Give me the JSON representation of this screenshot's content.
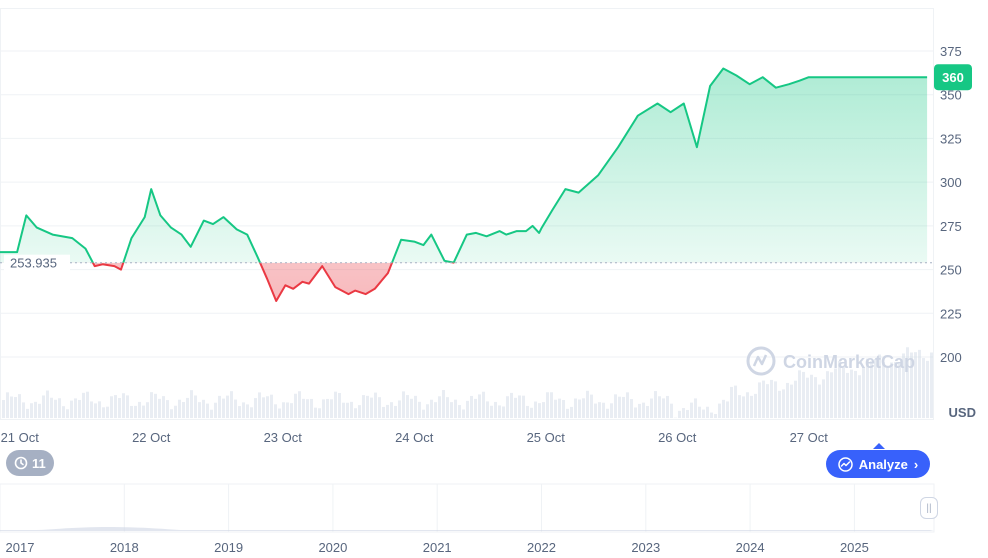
{
  "chart_data": {
    "type": "area",
    "currency_label": "USD",
    "current_price_label": "360",
    "baseline_label": "253.935",
    "baseline_value": 253.935,
    "ylim": [
      185,
      385
    ],
    "y_ticks": [
      "375",
      "350",
      "325",
      "300",
      "275",
      "250",
      "225",
      "200"
    ],
    "y_tick_values": [
      375,
      350,
      325,
      300,
      275,
      250,
      225,
      200
    ],
    "x_tick_labels": [
      "21 Oct",
      "22 Oct",
      "23 Oct",
      "24 Oct",
      "25 Oct",
      "26 Oct",
      "27 Oct"
    ],
    "x_range_days": [
      0,
      7.05
    ],
    "x_tick_days": [
      0.15,
      1.15,
      2.15,
      3.15,
      4.15,
      5.15,
      6.15
    ],
    "series": [
      {
        "days": [
          0.0,
          0.13,
          0.2,
          0.28,
          0.4,
          0.55,
          0.65,
          0.72,
          0.78,
          0.87,
          0.92,
          1.0,
          1.1,
          1.15,
          1.22,
          1.3,
          1.38,
          1.45,
          1.55,
          1.62,
          1.7,
          1.8,
          1.88,
          1.96,
          2.03,
          2.1,
          2.17,
          2.23,
          2.3,
          2.35,
          2.45,
          2.55,
          2.65,
          2.7,
          2.78,
          2.85,
          2.95,
          3.05,
          3.15,
          3.22,
          3.28,
          3.38,
          3.45,
          3.55,
          3.62,
          3.7,
          3.8,
          3.85,
          3.93,
          4.0,
          4.05,
          4.1,
          4.12,
          4.2,
          4.3,
          4.4,
          4.55,
          4.7,
          4.85,
          5.0,
          5.1,
          5.2,
          5.3,
          5.4,
          5.5,
          5.6,
          5.7,
          5.8,
          5.9,
          6.0,
          6.08,
          6.15,
          6.2,
          6.28,
          6.35,
          6.4,
          6.47,
          6.55,
          6.6,
          6.68,
          6.75,
          6.85,
          6.95,
          7.05
        ],
        "values": [
          260,
          260,
          281,
          274,
          270,
          268,
          262,
          252,
          253,
          252,
          250,
          268,
          280,
          296,
          281,
          274,
          270,
          263,
          278,
          276,
          280,
          273,
          270,
          257,
          245,
          232,
          241,
          239,
          243,
          242,
          252,
          240,
          236,
          238,
          236,
          239,
          248,
          267,
          266,
          264,
          270,
          255,
          254,
          270,
          271,
          269,
          272,
          270,
          272,
          272,
          275,
          271,
          274,
          284,
          296,
          294,
          304,
          320,
          338,
          345,
          340,
          345,
          320,
          355,
          365,
          361,
          356,
          360,
          354,
          356,
          358,
          360,
          360,
          360,
          360,
          360,
          360,
          360,
          360,
          360,
          360,
          360,
          360,
          360
        ]
      }
    ],
    "watermark": "CoinMarketCap"
  },
  "controls": {
    "history_count": "11",
    "analyze_label": "Analyze"
  },
  "navigator": {
    "year_labels": [
      "2017",
      "2018",
      "2019",
      "2020",
      "2021",
      "2022",
      "2023",
      "2024",
      "2025"
    ]
  },
  "colors": {
    "up": "#16c784",
    "down": "#ea3943",
    "accent": "#3861fb",
    "grid": "#eff2f5",
    "text": "#58667e"
  }
}
